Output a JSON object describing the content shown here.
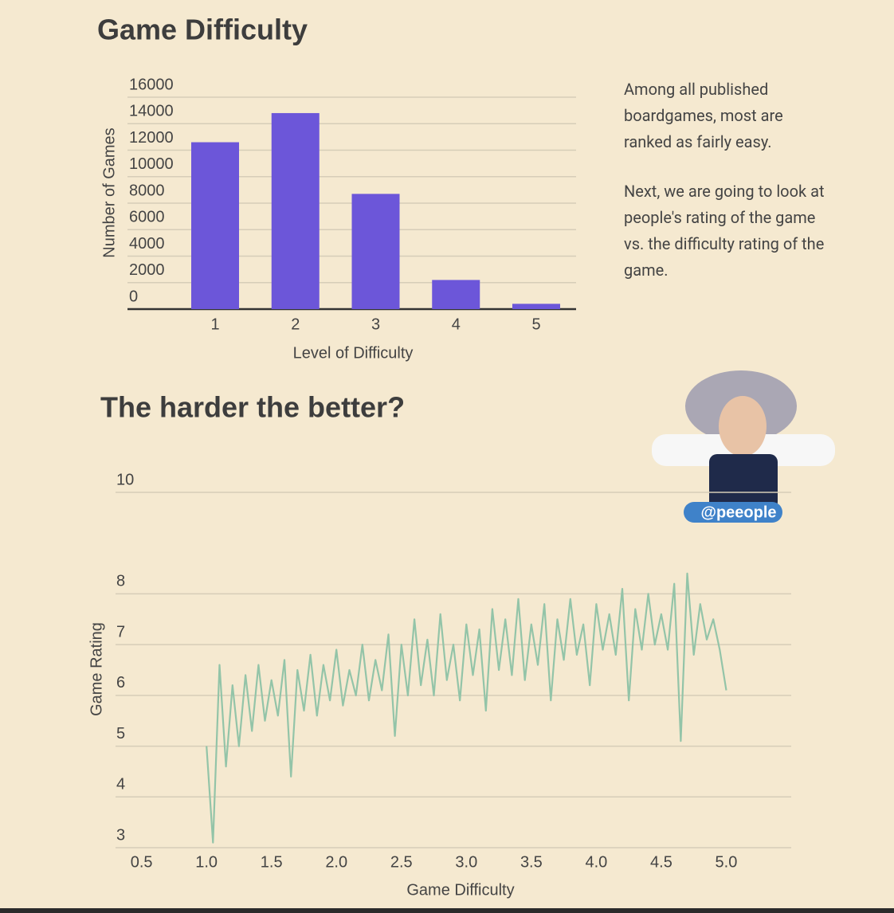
{
  "chart_data": [
    {
      "type": "bar",
      "title": "Game Difficulty",
      "x_label": "Level of Difficulty",
      "y_label": "Number of Games",
      "categories": [
        "1",
        "2",
        "3",
        "4",
        "5"
      ],
      "values": [
        12600,
        14800,
        8700,
        2200,
        400
      ],
      "color": "#6c56d9",
      "ylim": [
        0,
        16000
      ],
      "yticks": [
        0,
        2000,
        4000,
        6000,
        8000,
        10000,
        12000,
        14000,
        16000
      ],
      "grid": true,
      "annotations": [
        "Among all published boardgames, most are ranked as fairly easy.",
        "Next, we are going to look at people's rating of the game vs. the difficulty rating of the game."
      ]
    },
    {
      "type": "line",
      "title": "The harder the better?",
      "x_label": "Game Difficulty",
      "y_label": "Game Rating",
      "x": [
        1.0,
        1.05,
        1.1,
        1.15,
        1.2,
        1.25,
        1.3,
        1.35,
        1.4,
        1.45,
        1.5,
        1.55,
        1.6,
        1.65,
        1.7,
        1.75,
        1.8,
        1.85,
        1.9,
        1.95,
        2.0,
        2.05,
        2.1,
        2.15,
        2.2,
        2.25,
        2.3,
        2.35,
        2.4,
        2.45,
        2.5,
        2.55,
        2.6,
        2.65,
        2.7,
        2.75,
        2.8,
        2.85,
        2.9,
        2.95,
        3.0,
        3.05,
        3.1,
        3.15,
        3.2,
        3.25,
        3.3,
        3.35,
        3.4,
        3.45,
        3.5,
        3.55,
        3.6,
        3.65,
        3.7,
        3.75,
        3.8,
        3.85,
        3.9,
        3.95,
        4.0,
        4.05,
        4.1,
        4.15,
        4.2,
        4.25,
        4.3,
        4.35,
        4.4,
        4.45,
        4.5,
        4.55,
        4.6,
        4.65,
        4.7,
        4.75,
        4.8,
        4.85,
        4.9,
        4.95,
        5.0
      ],
      "values": [
        5.0,
        3.1,
        6.6,
        4.6,
        6.2,
        5.0,
        6.4,
        5.3,
        6.6,
        5.5,
        6.3,
        5.6,
        6.7,
        4.4,
        6.5,
        5.7,
        6.8,
        5.6,
        6.6,
        5.9,
        6.9,
        5.8,
        6.5,
        6.0,
        7.0,
        5.9,
        6.7,
        6.1,
        7.2,
        5.2,
        7.0,
        6.0,
        7.5,
        6.2,
        7.1,
        6.0,
        7.6,
        6.3,
        7.0,
        5.9,
        7.4,
        6.4,
        7.3,
        5.7,
        7.7,
        6.5,
        7.5,
        6.4,
        7.9,
        6.3,
        7.4,
        6.6,
        7.8,
        5.9,
        7.5,
        6.7,
        7.9,
        6.8,
        7.4,
        6.2,
        7.8,
        6.9,
        7.6,
        6.8,
        8.1,
        5.9,
        7.7,
        6.9,
        8.0,
        7.0,
        7.6,
        6.9,
        8.2,
        5.1,
        8.4,
        6.8,
        7.8,
        7.1,
        7.5,
        6.9,
        6.1
      ],
      "color": "#93c4a8",
      "xlim": [
        0.3,
        5.5
      ],
      "xticks": [
        0.5,
        {
          "value": 1,
          "label": "1.0"
        },
        1.5,
        {
          "value": 2,
          "label": "2.0"
        },
        2.5,
        {
          "value": 3,
          "label": "3.0"
        },
        3.5,
        {
          "value": 4,
          "label": "4.0"
        },
        4.5,
        {
          "value": 5,
          "label": "5.0"
        }
      ],
      "ylim": [
        3,
        10
      ],
      "yticks": [
        3,
        4,
        5,
        6,
        7,
        8,
        10
      ],
      "grid": true
    }
  ],
  "sticker": {
    "label": "@peeople"
  }
}
